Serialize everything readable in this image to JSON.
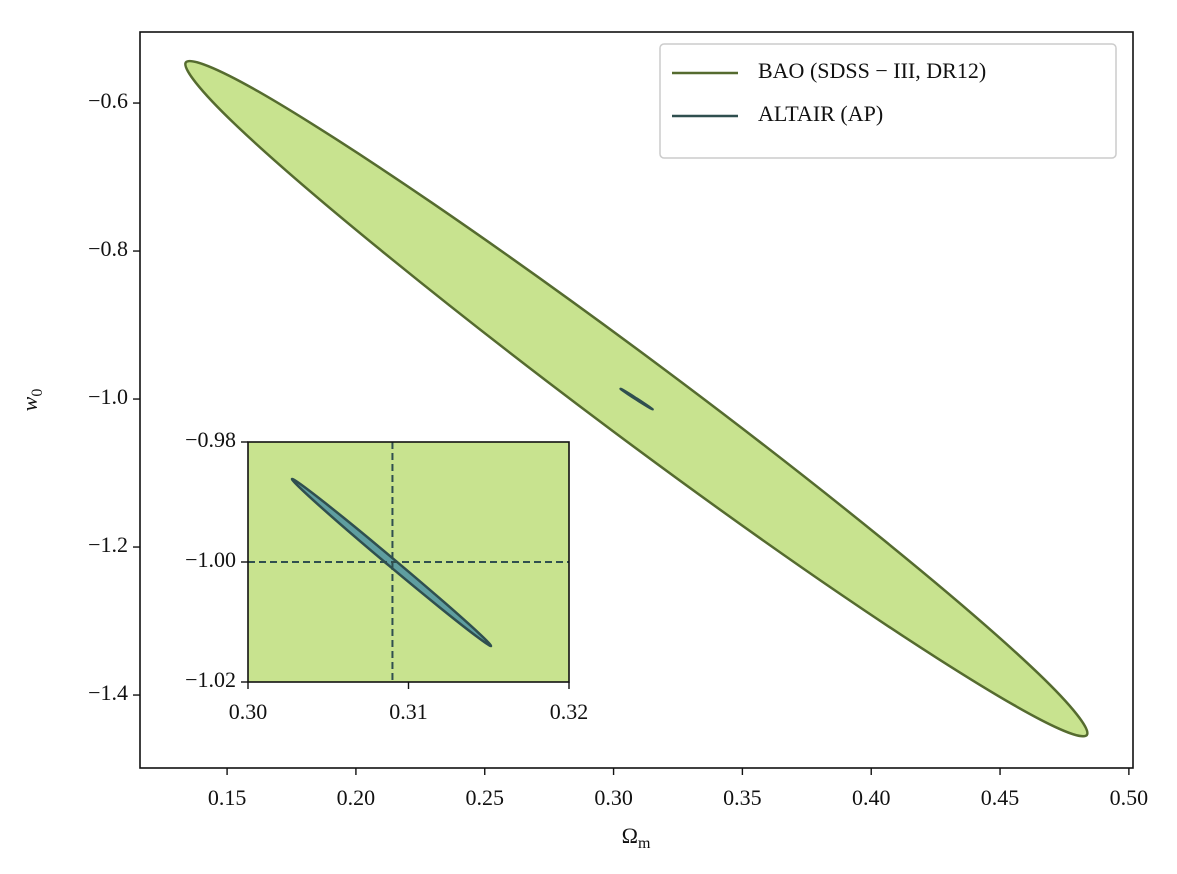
{
  "chart_data": [
    {
      "type": "contour",
      "xlabel": "Ω",
      "xlabel_sub": "m",
      "ylabel": "w",
      "ylabel_sub": "0",
      "xlim": [
        0.1162,
        0.5016
      ],
      "ylim": [
        -1.4986,
        -0.504
      ],
      "xticks": [
        0.15,
        {
          "value": 0.2,
          "label": "0.20"
        },
        0.25,
        {
          "value": 0.3,
          "label": "0.30"
        },
        0.35,
        {
          "value": 0.4,
          "label": "0.40"
        },
        0.45,
        {
          "value": 0.5,
          "label": "0.50"
        }
      ],
      "yticks": [
        {
          "value": -0.6,
          "label": "−0.6"
        },
        {
          "value": -0.8,
          "label": "−0.8"
        },
        {
          "value": -1.0,
          "label": "−1.0"
        },
        {
          "value": -1.2,
          "label": "−1.2"
        },
        {
          "value": -1.4,
          "label": "−1.4"
        }
      ],
      "legend": "upper right",
      "series": [
        {
          "name": "BAO (SDSS − III,  DR12)",
          "color": "#556b2f",
          "fill": "#c8e38f",
          "x": [
            0.4837,
            0.4556,
            0.3882,
            0.2996,
            0.2136,
            0.1529,
            0.134,
            0.1622,
            0.2296,
            0.3182,
            0.4043,
            0.4649
          ],
          "y": [
            -1.454,
            -1.414,
            -1.264,
            -1.043,
            -0.81,
            -0.628,
            -0.545,
            -0.5845,
            -0.735,
            -0.956,
            -1.189,
            -1.371
          ]
        },
        {
          "name": "ALTAIR (AP)",
          "color": "#2f4f4f",
          "fill": "#5f9ea0",
          "x": [
            0.31514,
            0.31423,
            0.31191,
            0.30878,
            0.3057,
            0.30349,
            0.30274,
            0.30365,
            0.30598,
            0.3091,
            0.31218,
            0.31439
          ],
          "y": [
            -1.014,
            -1.01238,
            -1.0075,
            -1.0006,
            -0.99357,
            -0.98828,
            -0.98617,
            -0.98778,
            -0.99267,
            -0.99957,
            -1.0066,
            -1.01188
          ]
        }
      ]
    },
    {
      "type": "contour",
      "facecolor": "#c8e38f",
      "xlim": [
        0.3,
        0.32
      ],
      "ylim": [
        -1.02,
        -0.98
      ],
      "xticks": [
        {
          "value": 0.3,
          "label": "0.30"
        },
        0.31,
        0.32
      ],
      "yticks": [
        {
          "value": -0.98,
          "label": "−0.98"
        },
        {
          "value": -1.0,
          "label": "−1.00"
        },
        {
          "value": -1.02,
          "label": "−1.02"
        }
      ],
      "reference": {
        "x": 0.309,
        "y": -1.0,
        "color": "#2f4f4f"
      },
      "series": [
        {
          "color": "#2f4f4f",
          "fill": "#5f9ea0",
          "x": [
            0.31514,
            0.31423,
            0.31191,
            0.30878,
            0.3057,
            0.30349,
            0.30274,
            0.30365,
            0.30598,
            0.3091,
            0.31218,
            0.31439
          ],
          "y": [
            -1.014,
            -1.01238,
            -1.0075,
            -1.0006,
            -0.99357,
            -0.98828,
            -0.98617,
            -0.98778,
            -0.99267,
            -0.99957,
            -1.0066,
            -1.01188
          ]
        }
      ]
    }
  ]
}
